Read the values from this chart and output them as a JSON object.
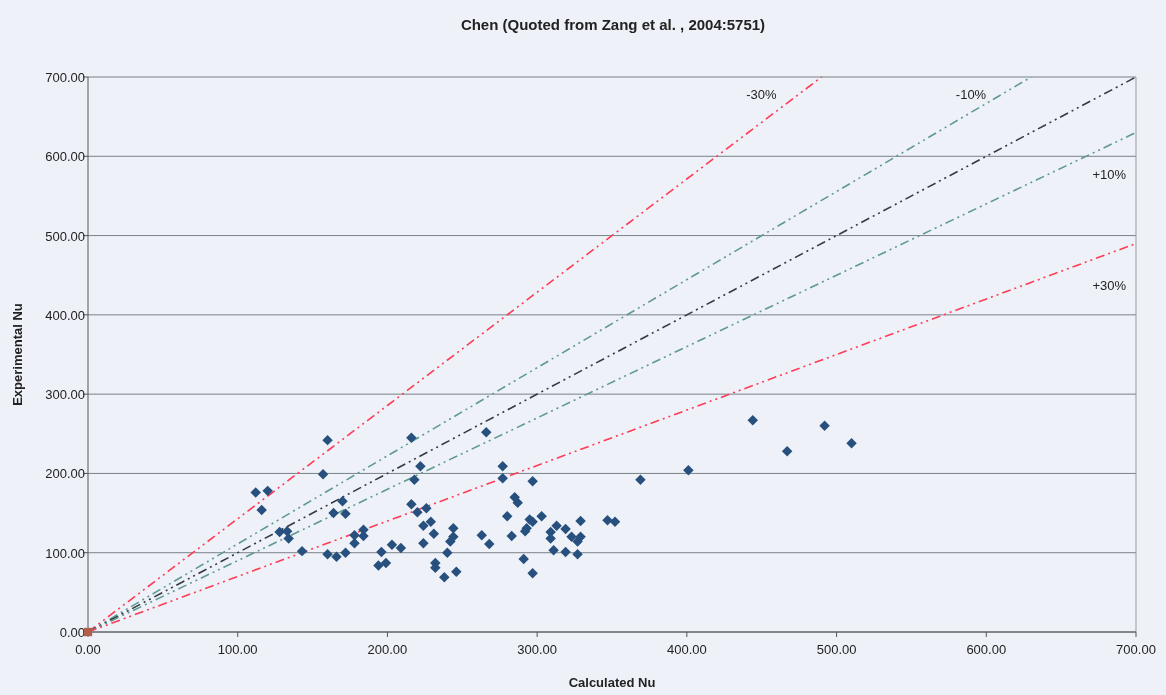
{
  "chart_data": {
    "type": "scatter",
    "title": "Chen (Quoted from Zang et al. , 2004:5751)",
    "xlabel": "Calculated Nu",
    "ylabel": "Experimental Nu",
    "xlim": [
      0,
      700
    ],
    "ylim": [
      0,
      700
    ],
    "xticks": [
      {
        "value": 0,
        "label": "0.00"
      },
      {
        "value": 100,
        "label": "100.00"
      },
      {
        "value": 200,
        "label": "200.00"
      },
      {
        "value": 300,
        "label": "300.00"
      },
      {
        "value": 400,
        "label": "400.00"
      },
      {
        "value": 500,
        "label": "500.00"
      },
      {
        "value": 600,
        "label": "600.00"
      },
      {
        "value": 700,
        "label": "700.00"
      }
    ],
    "yticks": [
      {
        "value": 0,
        "label": "0.00"
      },
      {
        "value": 100,
        "label": "100.00"
      },
      {
        "value": 200,
        "label": "200.00"
      },
      {
        "value": 300,
        "label": "300.00"
      },
      {
        "value": 400,
        "label": "400.00"
      },
      {
        "value": 500,
        "label": "500.00"
      },
      {
        "value": 600,
        "label": "600.00"
      },
      {
        "value": 700,
        "label": "700.00"
      }
    ],
    "grid": "y",
    "series": [
      {
        "name": "-30%",
        "type": "line",
        "color": "#ff3b55",
        "line_style": "dashed",
        "marker": "none",
        "x": [
          0,
          490
        ],
        "values": [
          0,
          700
        ]
      },
      {
        "name": "-10%",
        "type": "line",
        "color": "#5f9a8e",
        "line_style": "dashed",
        "marker": "none",
        "x": [
          0,
          630
        ],
        "values": [
          0,
          700
        ]
      },
      {
        "type": "line",
        "color": "#333a44",
        "line_style": "dashed",
        "marker": "none",
        "x": [
          0,
          700
        ],
        "values": [
          0,
          700
        ]
      },
      {
        "name": "+10%",
        "type": "line",
        "color": "#5f9a8e",
        "line_style": "dashed",
        "marker": "none",
        "x": [
          0,
          700
        ],
        "values": [
          0,
          630
        ]
      },
      {
        "name": "+30%",
        "type": "line",
        "color": "#ff3b55",
        "line_style": "dashed",
        "marker": "none",
        "x": [
          0,
          700
        ],
        "values": [
          0,
          490
        ]
      },
      {
        "color": "#b0604a",
        "marker": "square",
        "x": [
          0
        ],
        "values": [
          0
        ]
      },
      {
        "color": "#27507e",
        "marker": "diamond",
        "x": [
          160,
          157,
          112,
          120,
          116,
          128,
          133,
          134,
          143,
          170,
          164,
          172,
          160,
          166,
          172,
          178,
          184,
          184,
          178,
          196,
          203,
          209,
          194,
          199,
          216,
          222,
          218,
          216,
          220,
          226,
          224,
          229,
          231,
          224,
          244,
          242,
          240,
          232,
          232,
          238,
          246,
          266,
          277,
          277,
          297,
          285,
          287,
          280,
          295,
          297,
          303,
          293,
          292,
          244,
          263,
          268,
          283,
          313,
          309,
          309,
          319,
          329,
          323,
          329,
          327,
          311,
          319,
          327,
          291,
          297,
          347,
          352,
          369,
          401,
          444,
          492,
          467,
          510
        ],
        "values": [
          242,
          199,
          176,
          178,
          154,
          126,
          127,
          118,
          102,
          165,
          150,
          149,
          98,
          95,
          100,
          122,
          129,
          121,
          112,
          101,
          110,
          106,
          84,
          87,
          245,
          209,
          192,
          161,
          151,
          156,
          134,
          139,
          124,
          112,
          131,
          114,
          100,
          87,
          81,
          69,
          76,
          252,
          209,
          194,
          190,
          170,
          163,
          146,
          142,
          139,
          146,
          131,
          127,
          120,
          122,
          111,
          121,
          134,
          126,
          118,
          130,
          140,
          120,
          120,
          114,
          103,
          101,
          98,
          92,
          74,
          141,
          139,
          192,
          204,
          267,
          260,
          228,
          238
        ]
      }
    ]
  }
}
